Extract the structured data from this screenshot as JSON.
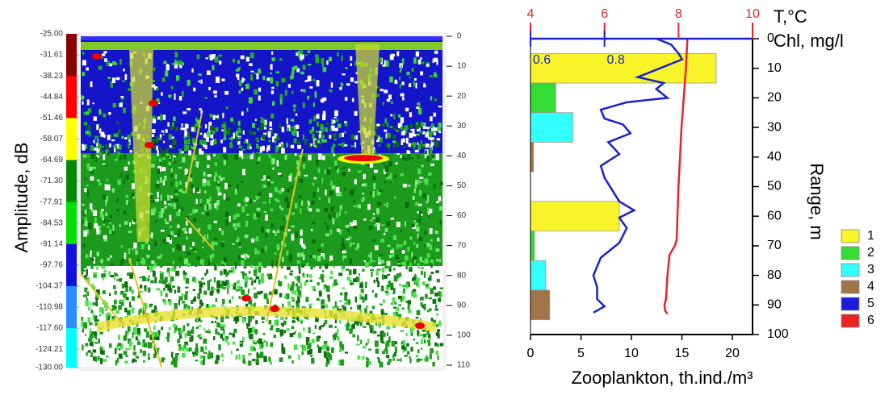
{
  "echogram": {
    "ylabel": "Amplitude, dB",
    "scale_ticks": [
      {
        "value": -25,
        "label": "-25.00"
      },
      -31.61,
      -38.23,
      -44.84,
      -51.46,
      -58.07,
      -64.69,
      {
        "value": -71.3,
        "label": "-71.30"
      },
      -77.91,
      -84.53,
      -91.14,
      -97.76,
      -104.37,
      -110.98,
      {
        "value": -117.6,
        "label": "-117.60"
      },
      -124.21,
      {
        "value": -130,
        "label": "-130.00"
      }
    ],
    "scale_lim": [
      -25,
      -130
    ],
    "scale_colors": [
      "#8b0000",
      "#ff0000",
      "#ffff00",
      "#008a00",
      "#00e000",
      "#1010e0",
      "#2a8cff",
      "#00ffff"
    ],
    "depth_lim": [
      0,
      110
    ],
    "depth_ticks": [
      0,
      10,
      20,
      30,
      40,
      50,
      60,
      70,
      80,
      90,
      100,
      110
    ]
  },
  "chart_data": {
    "type": "bar",
    "xlabel": "Zooplankton, th.ind./m³",
    "ylabel": "Range, m",
    "xlim": [
      0,
      22
    ],
    "xticks": [
      0,
      5,
      10,
      15,
      20
    ],
    "ylim": [
      0,
      100
    ],
    "yticks": [
      0,
      10,
      20,
      30,
      40,
      50,
      60,
      70,
      80,
      90,
      100
    ],
    "depths": [
      10,
      20,
      30,
      40,
      50,
      60,
      70,
      80,
      90
    ],
    "series": [
      {
        "name": "1",
        "color": "#f7f52a",
        "values": [
          18.4,
          null,
          null,
          null,
          null,
          8.8,
          null,
          null,
          null
        ]
      },
      {
        "name": "2",
        "color": "#33dd33",
        "values": [
          null,
          2.5,
          null,
          null,
          null,
          null,
          0.4,
          null,
          null
        ]
      },
      {
        "name": "3",
        "color": "#33ffff",
        "values": [
          null,
          null,
          4.2,
          null,
          null,
          null,
          null,
          1.5,
          null
        ]
      },
      {
        "name": "4",
        "color": "#a2744a",
        "values": [
          null,
          null,
          null,
          0.3,
          null,
          null,
          null,
          null,
          1.9
        ]
      },
      {
        "name": "5",
        "color": "#1c1cdc",
        "values": [
          null,
          null,
          null,
          null,
          null,
          null,
          null,
          null,
          null
        ]
      },
      {
        "name": "6",
        "color": "#ee2222",
        "values": [
          null,
          null,
          null,
          null,
          null,
          null,
          null,
          null,
          null
        ]
      }
    ],
    "temperature": {
      "label": "T,°C",
      "color": "#e8232a",
      "xlim": [
        4,
        10
      ],
      "xticks": [
        4,
        6,
        8,
        10
      ],
      "depth": [
        0,
        5,
        10,
        15,
        20,
        30,
        40,
        50,
        60,
        68,
        70,
        73,
        80,
        88,
        90,
        92,
        93
      ],
      "values": [
        8.24,
        8.22,
        8.2,
        8.17,
        8.14,
        8.08,
        8.04,
        8.0,
        7.97,
        7.95,
        7.9,
        7.76,
        7.7,
        7.66,
        7.62,
        7.64,
        7.7
      ]
    },
    "chlorophyll": {
      "label": "Chl, mg/l",
      "color": "#1a22d0",
      "xlim": [
        0.6,
        1.2
      ],
      "xticks": [
        0.6,
        0.8
      ],
      "depth": [
        0,
        2,
        5,
        7,
        13,
        15,
        17,
        20,
        21.5,
        24,
        27,
        29,
        32,
        35,
        39,
        43,
        47,
        51,
        55,
        58,
        60.5,
        64,
        69,
        74,
        80,
        84,
        88,
        90.5,
        92.6
      ],
      "values": [
        0.94,
        0.98,
        1.0,
        1.01,
        0.89,
        0.96,
        0.94,
        0.97,
        0.86,
        0.79,
        0.8,
        0.85,
        0.87,
        0.81,
        0.84,
        0.79,
        0.8,
        0.82,
        0.84,
        0.88,
        0.84,
        0.86,
        0.84,
        0.79,
        0.77,
        0.78,
        0.78,
        0.8,
        0.77
      ]
    }
  }
}
